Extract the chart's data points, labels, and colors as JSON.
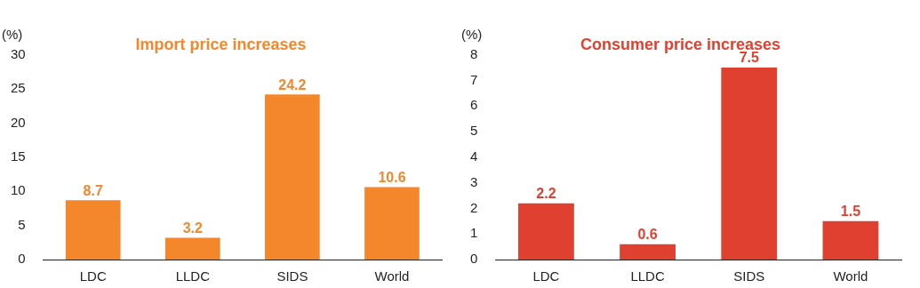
{
  "chart_data": [
    {
      "type": "bar",
      "title": "Import price increases",
      "ylabel": "(%)",
      "categories": [
        "LDC",
        "LLDC",
        "SIDS",
        "World"
      ],
      "values": [
        8.7,
        3.2,
        24.2,
        10.6
      ],
      "color": "#f4862b",
      "ylim": [
        0,
        30
      ],
      "yticks": [
        0,
        5,
        10,
        15,
        20,
        25,
        30
      ],
      "data_labels": true
    },
    {
      "type": "bar",
      "title": "Consumer price increases",
      "ylabel": "(%)",
      "categories": [
        "LDC",
        "LLDC",
        "SIDS",
        "World"
      ],
      "values": [
        2.2,
        0.6,
        7.5,
        1.5
      ],
      "color": "#e0402f",
      "ylim": [
        0,
        8
      ],
      "yticks": [
        0,
        1,
        2,
        3,
        4,
        5,
        6,
        7,
        8
      ],
      "data_labels": true
    }
  ]
}
